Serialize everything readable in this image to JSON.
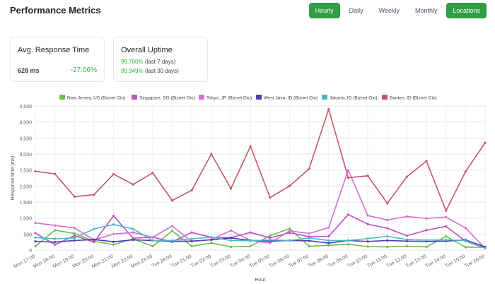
{
  "header": {
    "title": "Performance Metrics"
  },
  "tabs": [
    {
      "label": "Hourly",
      "active": true
    },
    {
      "label": "Daily",
      "active": false
    },
    {
      "label": "Weekly",
      "active": false
    },
    {
      "label": "Monthly",
      "active": false
    },
    {
      "label": "Locations",
      "active": true
    }
  ],
  "response_card": {
    "title": "Avg. Response Time",
    "value": "628 ms",
    "change": "-27.06%"
  },
  "uptime_card": {
    "title": "Overall Uptime",
    "lines": [
      {
        "pct": "99.780%",
        "period": "(last 7 days)"
      },
      {
        "pct": "99.949%",
        "period": "(last 30 days)"
      }
    ]
  },
  "colors": {
    "accent": "#2f9e44",
    "positive": "#2fb344"
  },
  "chart_data": {
    "type": "line",
    "xlabel": "Hour",
    "ylabel": "Response time (ms)",
    "ylim": [
      0,
      4500
    ],
    "yticks": [
      0,
      500,
      1000,
      1500,
      2000,
      2500,
      3000,
      3500,
      4000,
      4500
    ],
    "ytick_labels": [
      "0",
      "500",
      "1,000",
      "1,500",
      "2,000",
      "2,500",
      "3,000",
      "3,500",
      "4,000",
      "4,500"
    ],
    "grid": true,
    "legend_position": "top",
    "categories": [
      "Mon 17:00",
      "Mon 18:00",
      "Mon 19:00",
      "Mon 20:00",
      "Mon 21:00",
      "Mon 22:00",
      "Mon 23:00",
      "Tue 24:00",
      "Tue 01:00",
      "Tue 02:00",
      "Tue 03:00",
      "Tue 04:00",
      "Tue 05:00",
      "Tue 06:00",
      "Tue 07:00",
      "Tue 08:00",
      "Tue 09:00",
      "Tue 10:00",
      "Tue 11:00",
      "Tue 12:00",
      "Tue 13:00",
      "Tue 14:00",
      "Tue 15:00",
      "Tue 16:00"
    ],
    "series": [
      {
        "name": "New Jersey, US (Biznet Gio)",
        "color": "#6cc04a",
        "values": [
          120,
          620,
          520,
          280,
          170,
          350,
          120,
          600,
          120,
          220,
          100,
          120,
          450,
          670,
          120,
          150,
          180,
          110,
          100,
          120,
          100,
          430,
          90,
          90
        ]
      },
      {
        "name": "Singapore, SG (Biznet Gio)",
        "color": "#c04fc9",
        "values": [
          530,
          170,
          450,
          250,
          1070,
          370,
          400,
          260,
          550,
          400,
          390,
          550,
          380,
          540,
          420,
          430,
          1110,
          810,
          680,
          450,
          620,
          740,
          280,
          60
        ]
      },
      {
        "name": "Tokyo, JP (Biznet Gio)",
        "color": "#d86fd0",
        "values": [
          850,
          770,
          690,
          320,
          500,
          550,
          400,
          750,
          270,
          330,
          610,
          300,
          220,
          600,
          520,
          700,
          2500,
          1080,
          940,
          1050,
          990,
          1030,
          690,
          60
        ]
      },
      {
        "name": "West Java, ID (Biznet Gio)",
        "color": "#4b3fb2",
        "values": [
          270,
          250,
          300,
          330,
          260,
          320,
          300,
          270,
          280,
          320,
          380,
          300,
          280,
          300,
          290,
          220,
          300,
          270,
          300,
          280,
          270,
          280,
          320,
          100
        ]
      },
      {
        "name": "Jakarta, ID (Biznet Gio)",
        "color": "#4bb8c4",
        "values": [
          390,
          350,
          380,
          660,
          800,
          660,
          300,
          300,
          350,
          400,
          300,
          290,
          320,
          300,
          380,
          300,
          300,
          360,
          430,
          330,
          310,
          320,
          300,
          60
        ]
      },
      {
        "name": "Banten, ID (Biznet Gio)",
        "color": "#c5566a",
        "values": [
          2460,
          2380,
          1670,
          1730,
          2370,
          2050,
          2410,
          1550,
          1870,
          3000,
          1920,
          3240,
          1640,
          2000,
          2540,
          4400,
          2260,
          2320,
          1460,
          2290,
          2780,
          1230,
          2450,
          3350
        ]
      }
    ]
  }
}
